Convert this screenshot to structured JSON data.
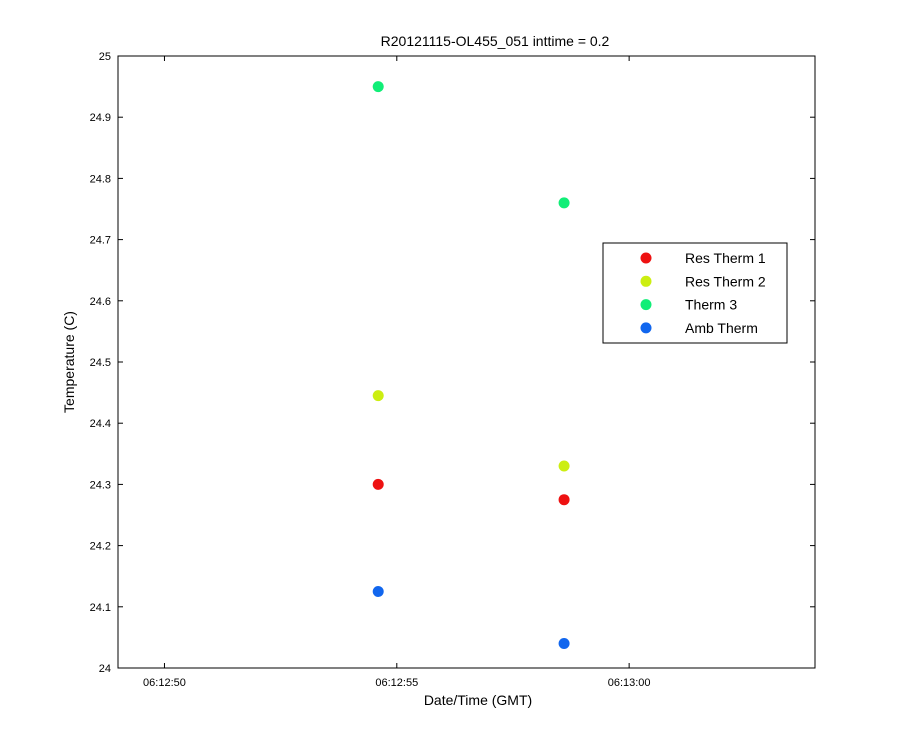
{
  "chart_data": {
    "type": "scatter",
    "title": "R20121115-OL455_051 inttime = 0.2",
    "xlabel": "Date/Time (GMT)",
    "ylabel": "Temperature (C)",
    "xlim": [
      "06:12:49",
      "06:13:04"
    ],
    "ylim": [
      24,
      25
    ],
    "x_ticks": [
      "06:12:50",
      "06:12:55",
      "06:13:00"
    ],
    "y_ticks": [
      "24",
      "24.1",
      "24.2",
      "24.3",
      "24.4",
      "24.5",
      "24.6",
      "24.7",
      "24.8",
      "24.9",
      "25"
    ],
    "grid": false,
    "legend_position": "right",
    "series": [
      {
        "name": "Res Therm 1",
        "color": "#ee1111",
        "points": [
          {
            "x": "06:12:54.6",
            "y": 24.3
          },
          {
            "x": "06:12:58.6",
            "y": 24.275
          }
        ]
      },
      {
        "name": "Res Therm 2",
        "color": "#ccee11",
        "points": [
          {
            "x": "06:12:54.6",
            "y": 24.445
          },
          {
            "x": "06:12:58.6",
            "y": 24.33
          }
        ]
      },
      {
        "name": "Therm 3",
        "color": "#11ee77",
        "points": [
          {
            "x": "06:12:54.6",
            "y": 24.95
          },
          {
            "x": "06:12:58.6",
            "y": 24.76
          }
        ]
      },
      {
        "name": "Amb Therm",
        "color": "#1166ee",
        "points": [
          {
            "x": "06:12:54.6",
            "y": 24.125
          },
          {
            "x": "06:12:58.6",
            "y": 24.04
          }
        ]
      }
    ]
  }
}
